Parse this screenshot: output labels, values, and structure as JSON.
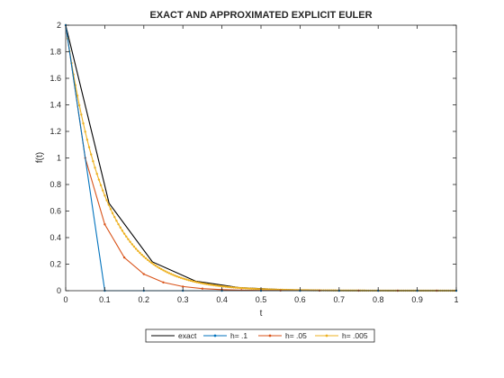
{
  "chart_data": {
    "type": "line",
    "title": "EXACT AND APPROXIMATED EXPLICIT EULER",
    "xlabel": "t",
    "ylabel": "f(t)",
    "xlim": [
      0,
      1
    ],
    "ylim": [
      0,
      2
    ],
    "grid": false,
    "legend_position": "bottom-outside",
    "x_ticks": [
      "0",
      "0.1",
      "0.2",
      "0.3",
      "0.4",
      "0.5",
      "0.6",
      "0.7",
      "0.8",
      "0.9",
      "1"
    ],
    "y_ticks": [
      "0",
      "0.2",
      "0.4",
      "0.6",
      "0.8",
      "1",
      "1.2",
      "1.4",
      "1.6",
      "1.8",
      "2"
    ],
    "series": [
      {
        "name": "exact",
        "color": "#000000",
        "marker": "none",
        "x": [
          0,
          0.111,
          0.222,
          0.333,
          0.444,
          0.556,
          0.667,
          0.778,
          0.889,
          1.0
        ],
        "y": [
          2.0,
          0.659,
          0.217,
          0.0716,
          0.0236,
          0.0078,
          0.0026,
          0.0008,
          0.0003,
          0.0001
        ]
      },
      {
        "name": "h= .1",
        "color": "#0072BD",
        "marker": "dot",
        "x": [
          0,
          0.1,
          0.2,
          0.3,
          0.4,
          0.5,
          0.6,
          0.7,
          0.8,
          0.9,
          1.0
        ],
        "y": [
          2.0,
          0,
          0,
          0,
          0,
          0,
          0,
          0,
          0,
          0,
          0
        ]
      },
      {
        "name": "h= .05",
        "color": "#D95319",
        "marker": "dot",
        "x": [
          0,
          0.05,
          0.1,
          0.15,
          0.2,
          0.25,
          0.3,
          0.35,
          0.4,
          0.45,
          0.5,
          0.55,
          0.6,
          0.65,
          0.7,
          0.75,
          0.8,
          0.85,
          0.9,
          0.95,
          1.0
        ],
        "y": [
          2.0,
          1.0,
          0.5,
          0.25,
          0.125,
          0.0625,
          0.03125,
          0.0156,
          0.0078,
          0.0039,
          0.002,
          0.001,
          0.0005,
          0.0002,
          0.0001,
          0.0001,
          0,
          0,
          0,
          0,
          0
        ]
      },
      {
        "name": "h= .005",
        "color": "#EDB120",
        "marker": "dot",
        "step": 0.005,
        "decay_factor": 0.95,
        "y0": 2.0,
        "t_end": 1.0
      }
    ]
  }
}
